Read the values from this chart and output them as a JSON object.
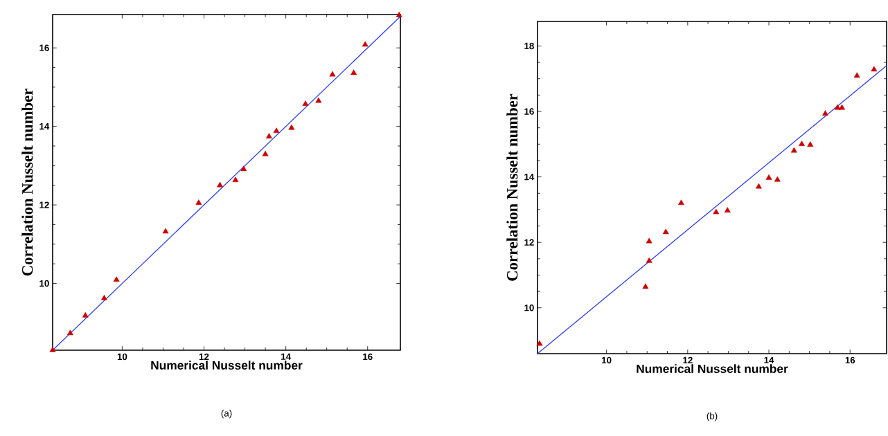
{
  "chart_data": [
    {
      "type": "scatter",
      "xlabel": "Numerical Nusselt number",
      "ylabel": "Correlation Nusselt number",
      "annotations": [
        "(a)"
      ],
      "xlim": [
        8.3,
        16.8
      ],
      "ylim": [
        8.3,
        16.85
      ],
      "xticks": [
        10,
        12,
        14,
        16
      ],
      "yticks": [
        10,
        12,
        14,
        16
      ],
      "series": [
        {
          "type": "scatter",
          "marker": "triangle",
          "color": "#cc0000",
          "x": [
            8.3,
            8.73,
            9.1,
            9.56,
            9.86,
            11.06,
            11.87,
            12.39,
            12.77,
            12.97,
            13.5,
            13.59,
            13.77,
            14.14,
            14.48,
            14.8,
            15.14,
            15.66,
            15.94,
            16.77
          ],
          "values": [
            8.3,
            8.73,
            9.18,
            9.62,
            10.09,
            11.32,
            12.05,
            12.5,
            12.63,
            12.91,
            13.29,
            13.74,
            13.88,
            13.96,
            14.57,
            14.65,
            15.32,
            15.36,
            16.08,
            16.83
          ]
        },
        {
          "type": "line",
          "color": "#3344ee",
          "x": [
            8.3,
            16.8
          ],
          "values": [
            8.3,
            16.8
          ]
        }
      ]
    },
    {
      "type": "scatter",
      "xlabel": "Numerical Nusselt number",
      "ylabel": "Correlation Nusselt number",
      "annotations": [
        "(b)"
      ],
      "xlim": [
        8.3,
        16.9
      ],
      "ylim": [
        8.6,
        18.75
      ],
      "xticks": [
        10,
        12,
        14,
        16
      ],
      "yticks": [
        10,
        12,
        14,
        16,
        18
      ],
      "series": [
        {
          "type": "scatter",
          "marker": "triangle",
          "color": "#cc0000",
          "x": [
            8.35,
            10.96,
            11.05,
            11.05,
            11.46,
            11.84,
            12.7,
            12.98,
            13.75,
            14.0,
            14.21,
            14.62,
            14.81,
            15.02,
            15.39,
            15.69,
            15.8,
            16.17,
            16.59
          ],
          "values": [
            8.9,
            10.64,
            12.03,
            11.43,
            12.31,
            13.2,
            12.92,
            12.97,
            13.7,
            13.97,
            13.91,
            14.8,
            15.0,
            14.98,
            15.93,
            16.11,
            16.11,
            17.09,
            17.28
          ]
        },
        {
          "type": "line",
          "color": "#3344ee",
          "x": [
            8.3,
            16.9
          ],
          "values": [
            8.6,
            17.4
          ]
        }
      ]
    }
  ]
}
